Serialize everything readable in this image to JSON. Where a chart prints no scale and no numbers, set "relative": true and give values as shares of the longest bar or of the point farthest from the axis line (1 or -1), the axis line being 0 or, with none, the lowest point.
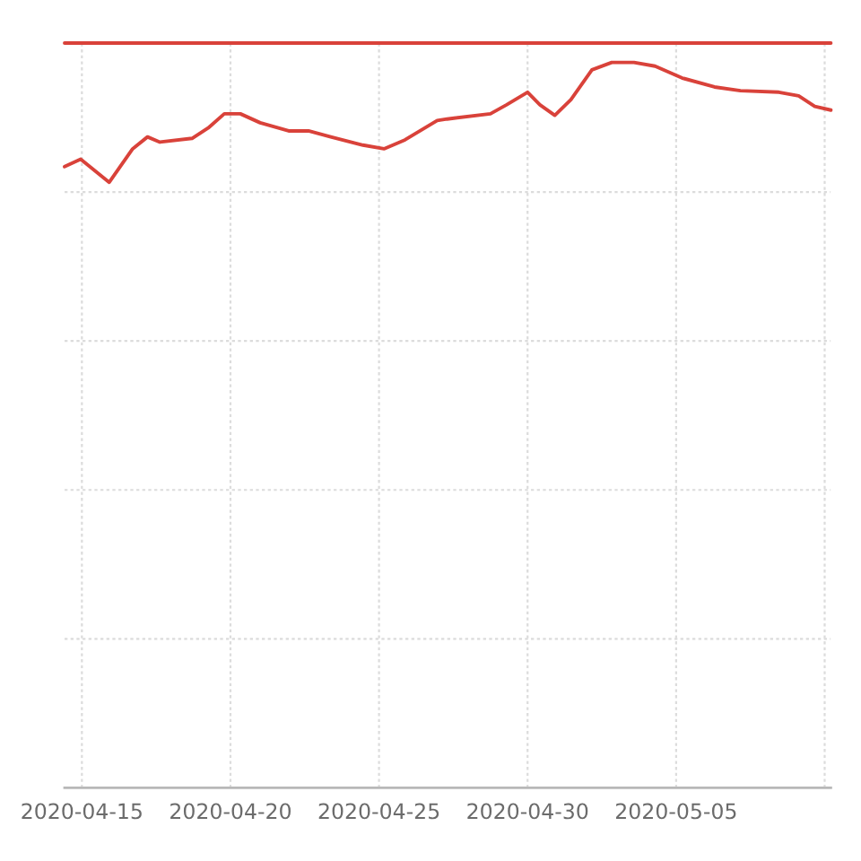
{
  "chart_data": {
    "type": "line",
    "relative": true,
    "grid": true,
    "xlim": [
      "2020-04-14T10:00",
      "2020-05-10T05:00"
    ],
    "xticks": [
      "2020-04-15",
      "2020-04-20",
      "2020-04-25",
      "2020-04-30",
      "2020-05-05",
      {
        "value": "2020-05-10",
        "label": null
      }
    ],
    "series": [
      {
        "color": "#d9423a",
        "x": [
          "2020-04-14T10:00",
          "2020-05-10T05:00"
        ],
        "values": [
          1,
          1
        ]
      },
      {
        "color": "#d9423a",
        "x": [
          "2020-04-14T10:00",
          "2020-04-14T23:00",
          "2020-04-15T22:00",
          "2020-04-16T17:00",
          "2020-04-17T05:00",
          "2020-04-17T15:00",
          "2020-04-18T17:00",
          "2020-04-19T06:00",
          "2020-04-19T19:00",
          "2020-04-20T08:00",
          "2020-04-21T00:00",
          "2020-04-21T23:00",
          "2020-04-22T15:00",
          "2020-04-23T09:00",
          "2020-04-24T11:00",
          "2020-04-25T04:00",
          "2020-04-25T21:00",
          "2020-04-26T23:00",
          "2020-04-27T07:00",
          "2020-04-28T18:00",
          "2020-04-29T07:00",
          "2020-04-30T00:00",
          "2020-04-30T10:00",
          "2020-04-30T22:00",
          "2020-05-01T11:00",
          "2020-05-02T04:00",
          "2020-05-02T20:00",
          "2020-05-03T14:00",
          "2020-05-04T07:00",
          "2020-05-05T05:00",
          "2020-05-06T07:00",
          "2020-05-07T04:00",
          "2020-05-08T11:00",
          "2020-05-09T03:00",
          "2020-05-09T16:00",
          "2020-05-10T05:00"
        ],
        "values": [
          0.834,
          0.844,
          0.813,
          0.858,
          0.874,
          0.867,
          0.872,
          0.886,
          0.905,
          0.905,
          0.893,
          0.882,
          0.882,
          0.874,
          0.863,
          0.858,
          0.87,
          0.896,
          0.898,
          0.905,
          0.917,
          0.934,
          0.917,
          0.903,
          0.924,
          0.964,
          0.974,
          0.974,
          0.969,
          0.953,
          0.941,
          0.936,
          0.934,
          0.929,
          0.915,
          0.91
        ]
      }
    ]
  }
}
